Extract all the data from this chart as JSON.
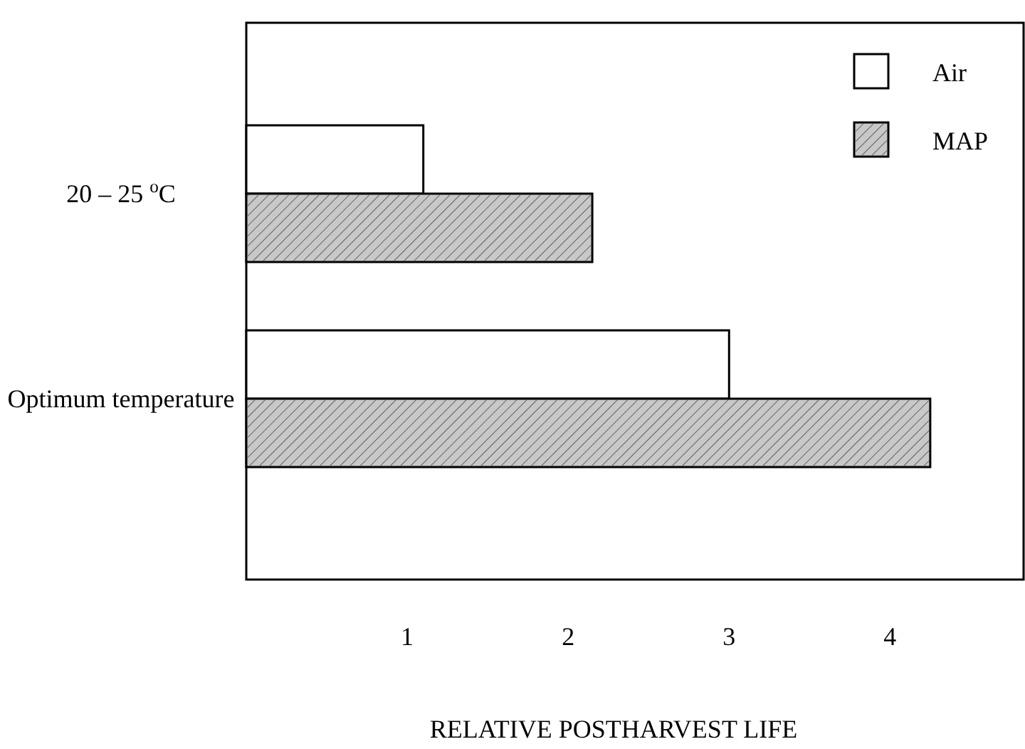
{
  "chart_data": {
    "type": "bar",
    "orientation": "horizontal",
    "xlabel": "RELATIVE POSTHARVEST LIFE",
    "categories": [
      "20 – 25 $^{o}$C",
      "Optimum temperature"
    ],
    "series": [
      {
        "name": "Air",
        "color": "#ffffff",
        "values": [
          1.1,
          3
        ]
      },
      {
        "name": "MAP",
        "color": "#c8c8c8",
        "values": [
          2.15,
          4.25
        ]
      }
    ],
    "xlim": [
      0,
      4.83
    ],
    "xticks": [
      1,
      2,
      3,
      4
    ],
    "grid": false,
    "legend": "top right"
  }
}
